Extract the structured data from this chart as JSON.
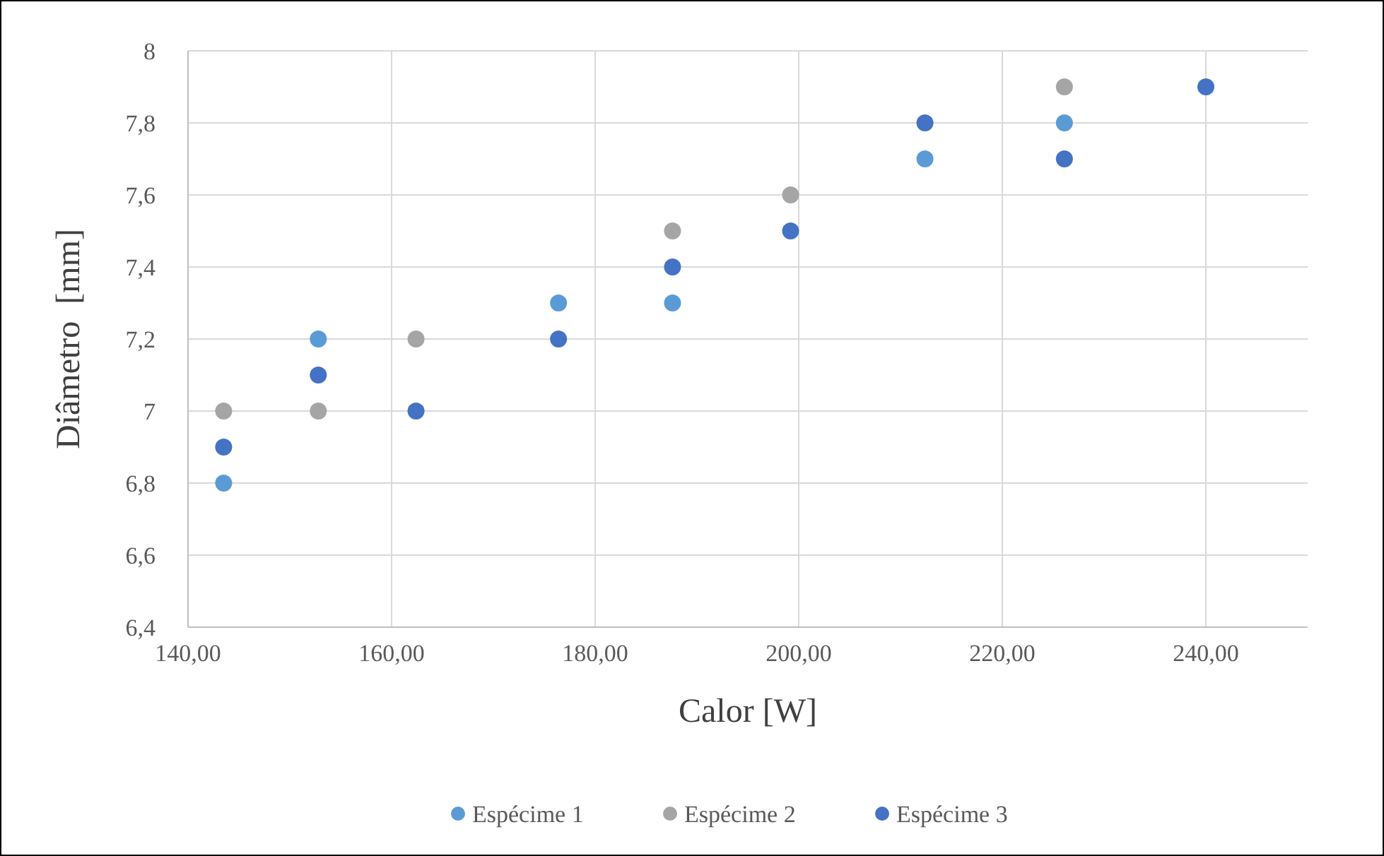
{
  "chart_data": {
    "type": "scatter",
    "xlabel": "Calor [W]",
    "ylabel": "Diâmetro  [mm]",
    "x": [
      143.5,
      152.8,
      162.4,
      176.4,
      187.6,
      199.2,
      212.4,
      226.1,
      240.0
    ],
    "series": [
      {
        "name": "Espécime 1",
        "color": "#5b9bd5",
        "values": [
          6.8,
          7.2,
          null,
          7.3,
          7.3,
          null,
          7.7,
          7.8,
          null
        ]
      },
      {
        "name": "Espécime 2",
        "color": "#a5a5a5",
        "values": [
          7.0,
          7.0,
          7.2,
          null,
          7.5,
          7.6,
          null,
          7.9,
          null
        ]
      },
      {
        "name": "Espécime 3",
        "color": "#4472c4",
        "values": [
          6.9,
          7.1,
          7.0,
          7.2,
          7.4,
          7.5,
          7.8,
          7.7,
          7.9
        ]
      }
    ],
    "xlim": [
      140,
      250
    ],
    "xticks": [
      {
        "value": 140,
        "label": "140,00"
      },
      {
        "value": 160,
        "label": "160,00"
      },
      {
        "value": 180,
        "label": "180,00"
      },
      {
        "value": 200,
        "label": "200,00"
      },
      {
        "value": 220,
        "label": "220,00"
      },
      {
        "value": 240,
        "label": "240,00"
      }
    ],
    "ylim": [
      6.4,
      8
    ],
    "yticks": [
      {
        "value": 6.4,
        "label": "6,4"
      },
      {
        "value": 6.6,
        "label": "6,6"
      },
      {
        "value": 6.8,
        "label": "6,8"
      },
      {
        "value": 7,
        "label": "7"
      },
      {
        "value": 7.2,
        "label": "7,2"
      },
      {
        "value": 7.4,
        "label": "7,4"
      },
      {
        "value": 7.6,
        "label": "7,6"
      },
      {
        "value": 7.8,
        "label": "7,8"
      },
      {
        "value": 8,
        "label": "8"
      }
    ],
    "grid": true,
    "legend": "bottom",
    "marker": "circle"
  }
}
